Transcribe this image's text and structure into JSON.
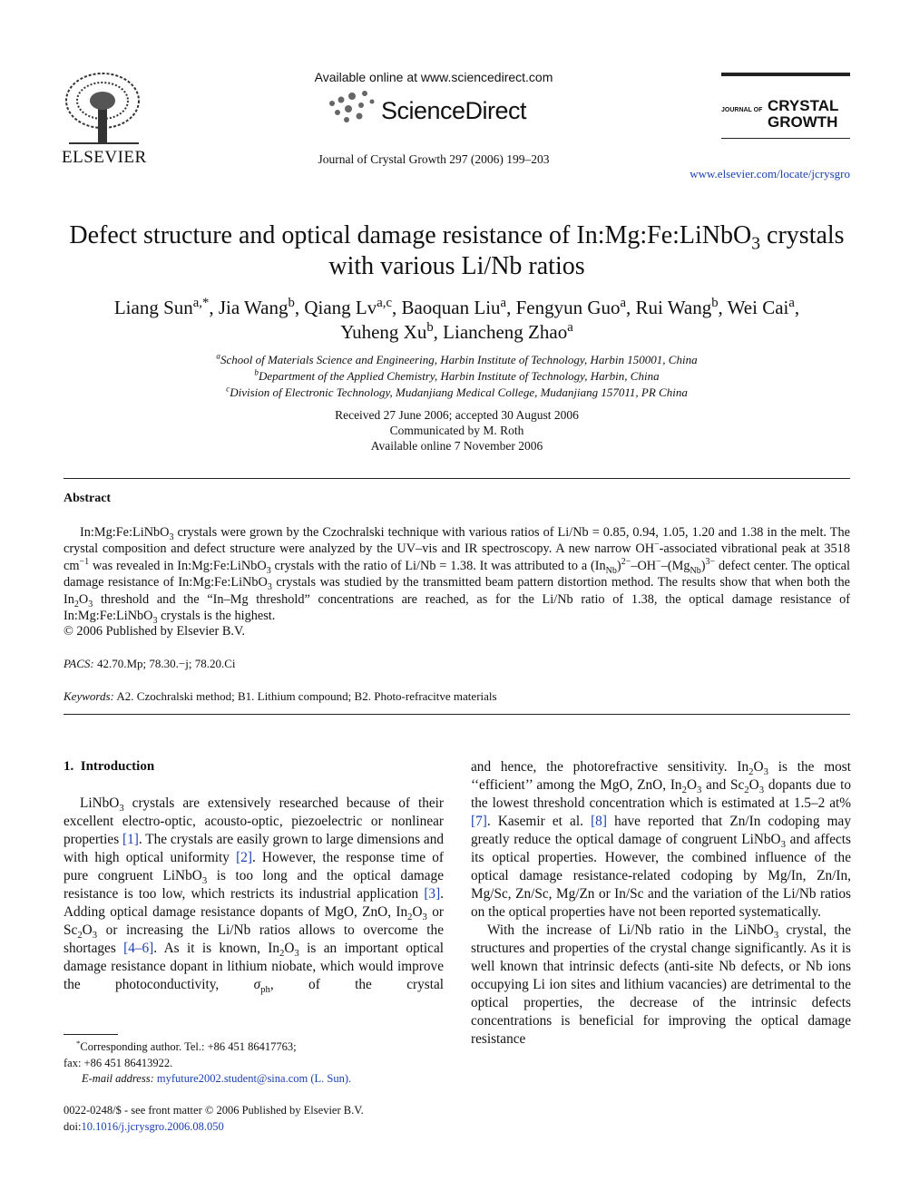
{
  "header": {
    "publisher": "ELSEVIER",
    "available_online": "Available online at www.sciencedirect.com",
    "service": "ScienceDirect",
    "citation": "Journal of Crystal Growth 297 (2006) 199–203",
    "journal_prefix": "JOURNAL OF",
    "journal_name_1": "CRYSTAL",
    "journal_name_2": "GROWTH",
    "url": "www.elsevier.com/locate/jcrysgro"
  },
  "title": [
    "Defect structure and optical damage resistance of In:Mg:Fe:LiNbO",
    {
      "sub": "3"
    },
    " crystals with various Li/Nb ratios"
  ],
  "authors": [
    "Liang Sun",
    {
      "sup": "a,*"
    },
    ", Jia Wang",
    {
      "sup": "b"
    },
    ", Qiang Lv",
    {
      "sup": "a,c"
    },
    ", Baoquan Liu",
    {
      "sup": "a"
    },
    ", Fengyun Guo",
    {
      "sup": "a"
    },
    ", Rui Wang",
    {
      "sup": "b"
    },
    ", Wei Cai",
    {
      "sup": "a"
    },
    ", Yuheng Xu",
    {
      "sup": "b"
    },
    ", Liancheng Zhao",
    {
      "sup": "a"
    }
  ],
  "affiliations": [
    [
      {
        "sup": "a"
      },
      "School of Materials Science and Engineering, Harbin Institute of Technology, Harbin 150001, China"
    ],
    [
      {
        "sup": "b"
      },
      "Department of the Applied Chemistry, Harbin Institute of Technology, Harbin, China"
    ],
    [
      {
        "sup": "c"
      },
      "Division of Electronic Technology, Mudanjiang Medical College, Mudanjiang 157011, PR China"
    ]
  ],
  "dates": [
    "Received 27 June 2006; accepted 30 August 2006",
    "Communicated by M. Roth",
    "Available online 7 November 2006"
  ],
  "abstract": {
    "heading": "Abstract",
    "text": [
      "In:Mg:Fe:LiNbO",
      {
        "sub": "3"
      },
      " crystals were grown by the Czochralski technique with various ratios of Li/Nb = 0.85, 0.94, 1.05, 1.20 and 1.38 in the melt. The crystal composition and defect structure were analyzed by the UV–vis and IR spectroscopy. A new narrow OH",
      {
        "sup": "−"
      },
      "-associated vibrational peak at 3518 cm",
      {
        "sup": "−1"
      },
      " was revealed in In:Mg:Fe:LiNbO",
      {
        "sub": "3"
      },
      " crystals with the ratio of Li/Nb = 1.38. It was attributed to a (In",
      {
        "sub": "Nb"
      },
      ")",
      {
        "sup": "2−"
      },
      "–OH",
      {
        "sup": "−"
      },
      "–(Mg",
      {
        "sub": "Nb"
      },
      ")",
      {
        "sup": "3−"
      },
      " defect center. The optical damage resistance of In:Mg:Fe:LiNbO",
      {
        "sub": "3"
      },
      " crystals was studied by the transmitted beam pattern distortion method. The results show that when both the In",
      {
        "sub": "2"
      },
      "O",
      {
        "sub": "3"
      },
      " threshold and the “In–Mg threshold” concentrations are reached, as for the Li/Nb ratio of 1.38, the optical damage resistance of In:Mg:Fe:LiNbO",
      {
        "sub": "3"
      },
      " crystals is the highest."
    ],
    "copyright": "© 2006 Published by Elsevier B.V."
  },
  "pacs": {
    "label": "PACS:",
    "text": "42.70.Mp; 78.30.−j; 78.20.Ci"
  },
  "keywords": {
    "label": "Keywords:",
    "text": "A2. Czochralski method; B1. Lithium compound; B2. Photo-refracitve materials"
  },
  "section": {
    "number": "1.",
    "title": "Introduction"
  },
  "body": {
    "column_1": [
      [
        "LiNbO",
        {
          "sub": "3"
        },
        " crystals are extensively researched because of their excellent electro-optic, acousto-optic, piezoelectric or nonlinear properties ",
        {
          "ref": "[1]"
        },
        ". The crystals are easily grown to large dimensions and with high optical uniformity ",
        {
          "ref": "[2]"
        },
        ". However, the response time of pure congruent LiNbO",
        {
          "sub": "3"
        },
        " is too long and the optical damage resistance is too low, which restricts its industrial application ",
        {
          "ref": "[3]"
        },
        ". Adding optical damage resistance dopants of MgO, ZnO, In",
        {
          "sub": "2"
        },
        "O",
        {
          "sub": "3"
        },
        " or Sc",
        {
          "sub": "2"
        },
        "O",
        {
          "sub": "3"
        },
        " or increasing the Li/Nb ratios allows to overcome the shortages ",
        {
          "ref": "[4–6]"
        },
        ". As it is known, In",
        {
          "sub": "2"
        },
        "O",
        {
          "sub": "3"
        },
        " is an important optical damage resistance dopant in lithium niobate, which would improve the photoconductivity, ",
        {
          "i": "σ"
        },
        {
          "sub": "ph"
        },
        ", of the crystal"
      ]
    ],
    "column_2": [
      [
        "and hence, the photorefractive sensitivity. In",
        {
          "sub": "2"
        },
        "O",
        {
          "sub": "3"
        },
        " is the most ‘‘efficient’’ among the MgO, ZnO, In",
        {
          "sub": "2"
        },
        "O",
        {
          "sub": "3"
        },
        " and Sc",
        {
          "sub": "2"
        },
        "O",
        {
          "sub": "3"
        },
        " dopants due to the lowest threshold concentration which is estimated at 1.5–2 at% ",
        {
          "ref": "[7]"
        },
        ". Kasemir et al. ",
        {
          "ref": "[8]"
        },
        " have reported that Zn/In codoping may greatly reduce the optical damage of congruent LiNbO",
        {
          "sub": "3"
        },
        " and affects its optical properties. However, the combined influence of the optical damage resistance-related codoping by Mg/In, Zn/In, Mg/Sc, Zn/Sc, Mg/Zn or In/Sc and the variation of the Li/Nb ratios on the optical properties have not been reported systematically."
      ],
      [
        "With the increase of Li/Nb ratio in the LiNbO",
        {
          "sub": "3"
        },
        " crystal, the structures and properties of the crystal change significantly. As it is well known that intrinsic defects (anti-site Nb defects, or Nb ions occupying Li ion sites and lithium vacancies) are detrimental to the optical properties, the decrease of the intrinsic defects concentrations is beneficial for improving the optical damage resistance"
      ]
    ]
  },
  "footnote": {
    "corresponding": [
      {
        "sup": "*"
      },
      "Corresponding author. Tel.: +86 451 86417763;"
    ],
    "fax": "fax: +86 451 86413922.",
    "email_label": "E-mail address:",
    "email": "myfuture2002.student@sina.com (L. Sun)."
  },
  "footer": {
    "issn": "0022-0248/$ - see front matter © 2006 Published by Elsevier B.V.",
    "doi_label": "doi:",
    "doi": "10.1016/j.jcrysgro.2006.08.050"
  }
}
